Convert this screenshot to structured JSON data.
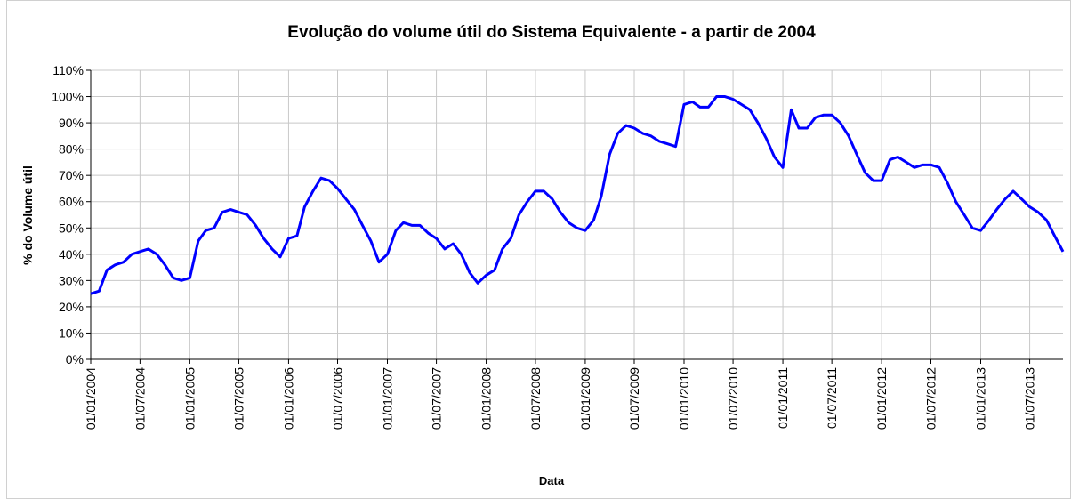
{
  "chart_data": {
    "type": "line",
    "title": "Evolução do volume útil do Sistema Equivalente - a partir de 2004",
    "xlabel": "Data",
    "ylabel": "% do Volume útil",
    "x": [
      "01/01/2004",
      "01/02/2004",
      "01/03/2004",
      "01/04/2004",
      "01/05/2004",
      "01/06/2004",
      "01/07/2004",
      "01/08/2004",
      "01/09/2004",
      "01/10/2004",
      "01/11/2004",
      "01/12/2004",
      "01/01/2005",
      "01/02/2005",
      "01/03/2005",
      "01/04/2005",
      "01/05/2005",
      "01/06/2005",
      "01/07/2005",
      "01/08/2005",
      "01/09/2005",
      "01/10/2005",
      "01/11/2005",
      "01/12/2005",
      "01/01/2006",
      "01/02/2006",
      "01/03/2006",
      "01/04/2006",
      "01/05/2006",
      "01/06/2006",
      "01/07/2006",
      "01/08/2006",
      "01/09/2006",
      "01/10/2006",
      "01/11/2006",
      "01/12/2006",
      "01/01/2007",
      "01/02/2007",
      "01/03/2007",
      "01/04/2007",
      "01/05/2007",
      "01/06/2007",
      "01/07/2007",
      "01/08/2007",
      "01/09/2007",
      "01/10/2007",
      "01/11/2007",
      "01/12/2007",
      "01/01/2008",
      "01/02/2008",
      "01/03/2008",
      "01/04/2008",
      "01/05/2008",
      "01/06/2008",
      "01/07/2008",
      "01/08/2008",
      "01/09/2008",
      "01/10/2008",
      "01/11/2008",
      "01/12/2008",
      "01/01/2009",
      "01/02/2009",
      "01/03/2009",
      "01/04/2009",
      "01/05/2009",
      "01/06/2009",
      "01/07/2009",
      "01/08/2009",
      "01/09/2009",
      "01/10/2009",
      "01/11/2009",
      "01/12/2009",
      "01/01/2010",
      "01/02/2010",
      "01/03/2010",
      "01/04/2010",
      "01/05/2010",
      "01/06/2010",
      "01/07/2010",
      "01/08/2010",
      "01/09/2010",
      "01/10/2010",
      "01/11/2010",
      "01/12/2010",
      "01/01/2011",
      "01/02/2011",
      "01/03/2011",
      "01/04/2011",
      "01/05/2011",
      "01/06/2011",
      "01/07/2011",
      "01/08/2011",
      "01/09/2011",
      "01/10/2011",
      "01/11/2011",
      "01/12/2011",
      "01/01/2012",
      "01/02/2012",
      "01/03/2012",
      "01/04/2012",
      "01/05/2012",
      "01/06/2012",
      "01/07/2012",
      "01/08/2012",
      "01/09/2012",
      "01/10/2012",
      "01/11/2012",
      "01/12/2012",
      "01/01/2013",
      "01/02/2013",
      "01/03/2013",
      "01/04/2013",
      "01/05/2013",
      "01/06/2013",
      "01/07/2013",
      "01/08/2013",
      "01/09/2013",
      "01/10/2013",
      "01/11/2013"
    ],
    "values": [
      25,
      26,
      34,
      36,
      37,
      40,
      41,
      42,
      40,
      36,
      31,
      30,
      31,
      45,
      49,
      50,
      56,
      57,
      56,
      55,
      51,
      46,
      42,
      39,
      46,
      47,
      58,
      64,
      69,
      68,
      65,
      61,
      57,
      51,
      45,
      37,
      40,
      49,
      52,
      51,
      51,
      48,
      46,
      42,
      44,
      40,
      33,
      29,
      32,
      34,
      42,
      46,
      55,
      60,
      64,
      64,
      61,
      56,
      52,
      50,
      49,
      53,
      62,
      78,
      86,
      89,
      88,
      86,
      85,
      83,
      82,
      81,
      97,
      98,
      96,
      96,
      100,
      100,
      99,
      97,
      95,
      90,
      84,
      77,
      73,
      95,
      88,
      88,
      92,
      93,
      93,
      90,
      85,
      78,
      71,
      68,
      68,
      76,
      77,
      75,
      73,
      74,
      74,
      73,
      67,
      60,
      55,
      50,
      49,
      53,
      57,
      61,
      64,
      61,
      58,
      56,
      53,
      47,
      41
    ],
    "color": "#0000ff",
    "xlim": [
      "01/01/2004",
      "01/11/2013"
    ],
    "xticks": [
      "01/01/2004",
      "01/07/2004",
      "01/01/2005",
      "01/07/2005",
      "01/01/2006",
      "01/07/2006",
      "01/01/2007",
      "01/07/2007",
      "01/01/2008",
      "01/07/2008",
      "01/01/2009",
      "01/07/2009",
      "01/01/2010",
      "01/07/2010",
      "01/01/2011",
      "01/07/2011",
      "01/01/2012",
      "01/07/2012",
      "01/01/2013",
      "01/07/2013"
    ],
    "ylim": [
      0,
      110
    ],
    "yticks": [
      {
        "value": 0,
        "label": "0%"
      },
      {
        "value": 10,
        "label": "10%"
      },
      {
        "value": 20,
        "label": "20%"
      },
      {
        "value": 30,
        "label": "30%"
      },
      {
        "value": 40,
        "label": "40%"
      },
      {
        "value": 50,
        "label": "50%"
      },
      {
        "value": 60,
        "label": "60%"
      },
      {
        "value": 70,
        "label": "70%"
      },
      {
        "value": 80,
        "label": "80%"
      },
      {
        "value": 90,
        "label": "90%"
      },
      {
        "value": 100,
        "label": "100%"
      },
      {
        "value": 110,
        "label": "110%"
      }
    ],
    "grid": true
  }
}
